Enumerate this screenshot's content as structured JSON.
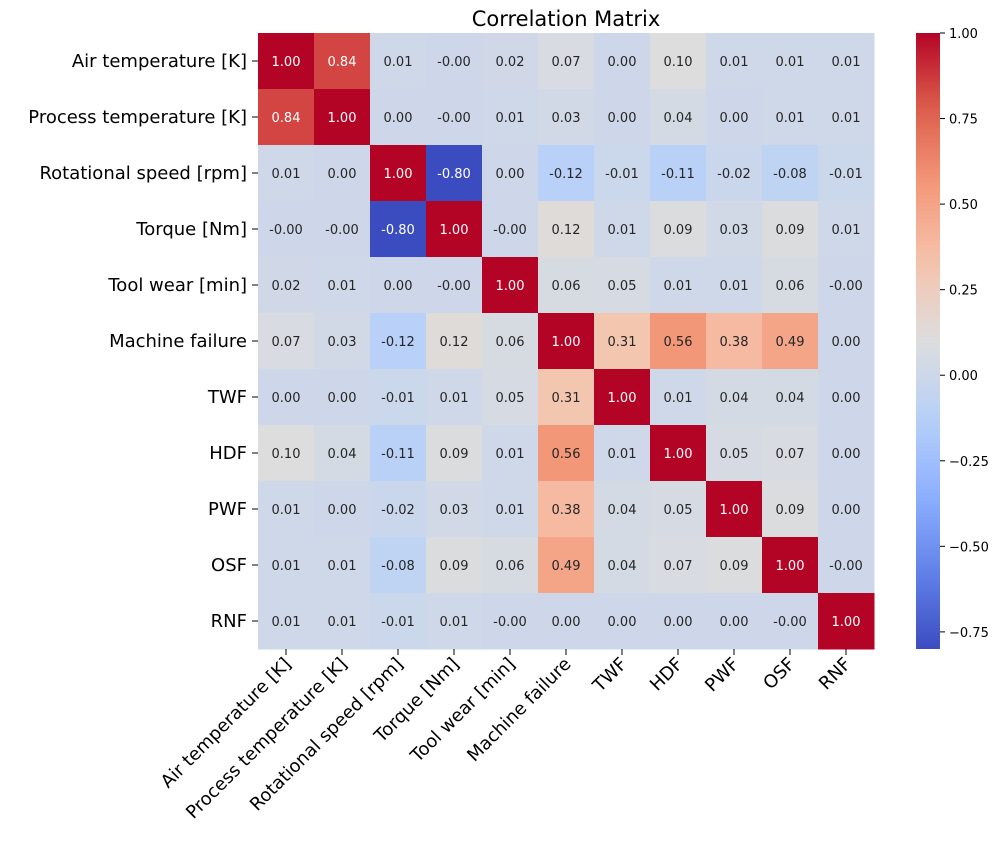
{
  "chart_data": {
    "type": "heatmap",
    "title": "Correlation Matrix",
    "xlabel": "",
    "ylabel": "",
    "labels": [
      "Air temperature [K]",
      "Process temperature [K]",
      "Rotational speed [rpm]",
      "Torque [Nm]",
      "Tool wear [min]",
      "Machine failure",
      "TWF",
      "HDF",
      "PWF",
      "OSF",
      "RNF"
    ],
    "values": [
      [
        1.0,
        0.84,
        0.01,
        -0.0,
        0.02,
        0.07,
        0.0,
        0.1,
        0.01,
        0.01,
        0.01
      ],
      [
        0.84,
        1.0,
        0.0,
        -0.0,
        0.01,
        0.03,
        0.0,
        0.04,
        0.0,
        0.01,
        0.01
      ],
      [
        0.01,
        0.0,
        1.0,
        -0.8,
        0.0,
        -0.12,
        -0.01,
        -0.11,
        -0.02,
        -0.08,
        -0.01
      ],
      [
        -0.0,
        -0.0,
        -0.8,
        1.0,
        -0.0,
        0.12,
        0.01,
        0.09,
        0.03,
        0.09,
        0.01
      ],
      [
        0.02,
        0.01,
        0.0,
        -0.0,
        1.0,
        0.06,
        0.05,
        0.01,
        0.01,
        0.06,
        -0.0
      ],
      [
        0.07,
        0.03,
        -0.12,
        0.12,
        0.06,
        1.0,
        0.31,
        0.56,
        0.38,
        0.49,
        0.0
      ],
      [
        0.0,
        0.0,
        -0.01,
        0.01,
        0.05,
        0.31,
        1.0,
        0.01,
        0.04,
        0.04,
        0.0
      ],
      [
        0.1,
        0.04,
        -0.11,
        0.09,
        0.01,
        0.56,
        0.01,
        1.0,
        0.05,
        0.07,
        0.0
      ],
      [
        0.01,
        0.0,
        -0.02,
        0.03,
        0.01,
        0.38,
        0.04,
        0.05,
        1.0,
        0.09,
        0.0
      ],
      [
        0.01,
        0.01,
        -0.08,
        0.09,
        0.06,
        0.49,
        0.04,
        0.07,
        0.09,
        1.0,
        -0.0
      ],
      [
        0.01,
        0.01,
        -0.01,
        0.01,
        -0.0,
        0.0,
        0.0,
        0.0,
        0.0,
        -0.0,
        1.0
      ]
    ],
    "colormap": "coolwarm",
    "vmin": -0.8,
    "vmax": 1.0,
    "colorbar": {
      "ticks": [
        1.0,
        0.75,
        0.5,
        0.25,
        0.0,
        -0.25,
        -0.5,
        -0.75
      ],
      "tick_labels": [
        "1.00",
        "0.75",
        "0.50",
        "0.25",
        "0.00",
        "−0.25",
        "−0.50",
        "−0.75"
      ],
      "placement": "right"
    },
    "grid": false
  }
}
